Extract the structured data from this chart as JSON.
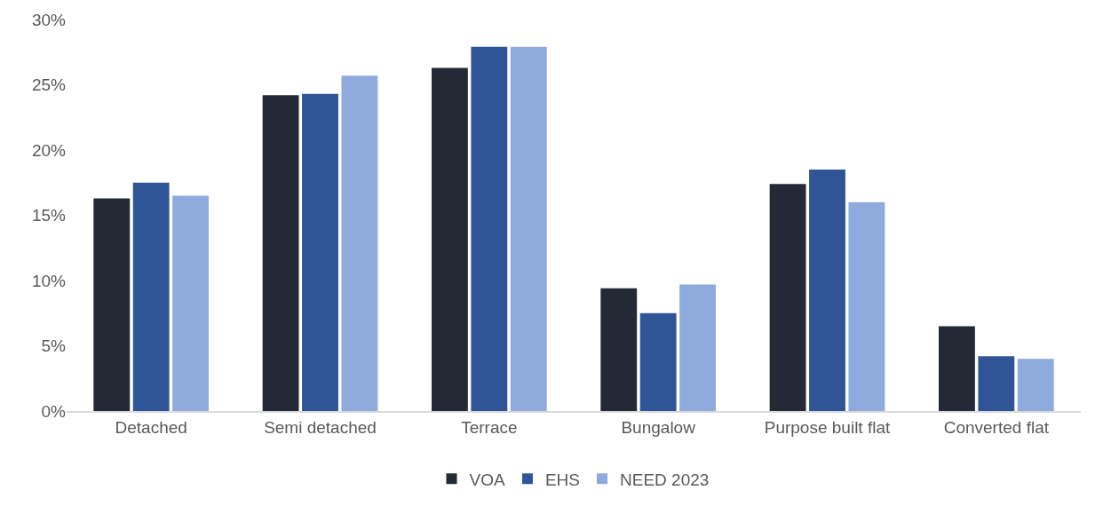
{
  "chart_data": {
    "type": "bar",
    "categories": [
      "Detached",
      "Semi detached",
      "Terrace",
      "Bungalow",
      "Purpose built flat",
      "Converted flat"
    ],
    "series": [
      {
        "name": "VOA",
        "color": "#232a35",
        "values": [
          16.3,
          24.2,
          26.3,
          9.4,
          17.4,
          6.5
        ]
      },
      {
        "name": "EHS",
        "color": "#2f5597",
        "values": [
          17.5,
          24.3,
          27.9,
          7.5,
          18.5,
          4.2
        ]
      },
      {
        "name": "NEED 2023",
        "color": "#8faadc",
        "values": [
          16.5,
          25.7,
          27.9,
          9.7,
          16.0,
          4.0
        ]
      }
    ],
    "ylim": [
      0,
      30
    ],
    "yticks": [
      {
        "value": 0,
        "label": "0%"
      },
      {
        "value": 5,
        "label": "5%"
      },
      {
        "value": 10,
        "label": "10%"
      },
      {
        "value": 15,
        "label": "15%"
      },
      {
        "value": 20,
        "label": "20%"
      },
      {
        "value": 25,
        "label": "25%"
      },
      {
        "value": 30,
        "label": "30%"
      }
    ],
    "legend": "bottom"
  }
}
